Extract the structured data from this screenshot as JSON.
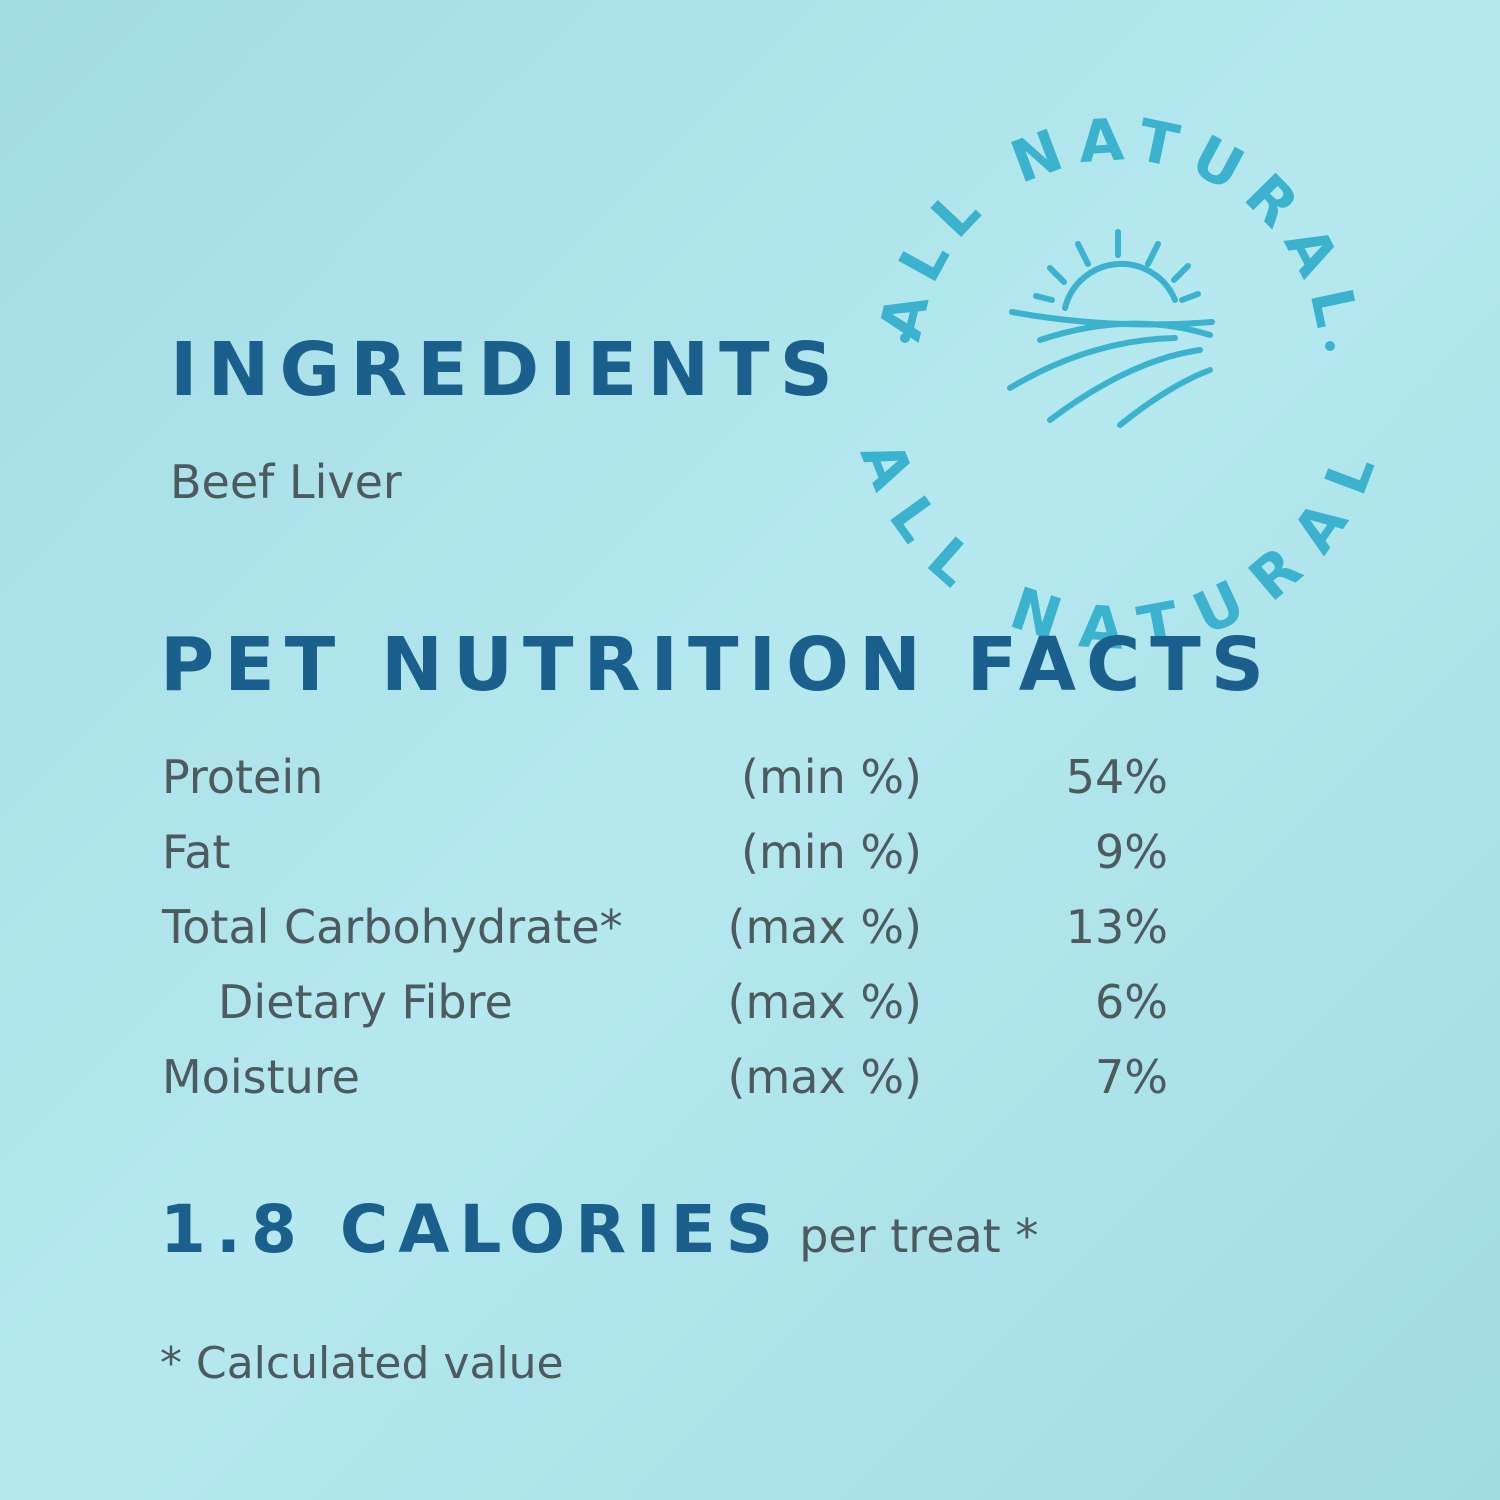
{
  "ingredients": {
    "title": "INGREDIENTS",
    "items": [
      "Beef Liver"
    ]
  },
  "nutrition": {
    "title": "PET NUTRITION FACTS",
    "rows": [
      {
        "name": "Protein",
        "basis": "(min %)",
        "value": "54%"
      },
      {
        "name": "Fat",
        "basis": "(min %)",
        "value": "9%"
      },
      {
        "name": "Total Carbohydrate*",
        "basis": "(max %)",
        "value": "13%"
      },
      {
        "name": "Dietary Fibre",
        "basis": "(max %)",
        "value": "6%"
      },
      {
        "name": "Moisture",
        "basis": "(max %)",
        "value": "7%"
      }
    ]
  },
  "calories": {
    "amount": "1.8 CALORIES",
    "unit": "per treat *"
  },
  "footnote": "* Calculated value",
  "badge": {
    "top": "ALL NATURAL",
    "bottom": "ALL NATURAL"
  }
}
